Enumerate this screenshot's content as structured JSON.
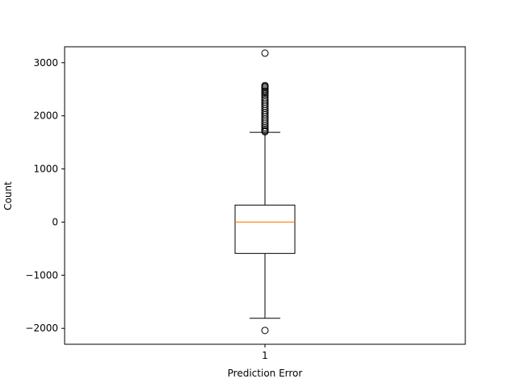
{
  "chart_data": {
    "type": "box",
    "xlabel": "Prediction Error",
    "ylabel": "Count",
    "ylim": [
      -2300,
      3300
    ],
    "yticks": [
      -2000,
      -1000,
      0,
      1000,
      2000,
      3000
    ],
    "yticklabels": [
      "−2000",
      "−1000",
      "0",
      "1000",
      "2000",
      "3000"
    ],
    "categories": [
      "1"
    ],
    "boxes": [
      {
        "label": "1",
        "whisker_low": -1810,
        "q1": -590,
        "median": 0,
        "q3": 320,
        "whisker_high": 1690,
        "outliers": [
          -2040,
          1700,
          1720,
          1750,
          1780,
          1820,
          1860,
          1900,
          1940,
          1980,
          2020,
          2060,
          2100,
          2140,
          2180,
          2220,
          2260,
          2300,
          2340,
          2380,
          2410,
          2440,
          2470,
          2500,
          2530,
          2550,
          2570,
          3180
        ]
      }
    ],
    "colors": {
      "box": "#000000",
      "median": "#ff7f0e"
    },
    "grid": false
  }
}
